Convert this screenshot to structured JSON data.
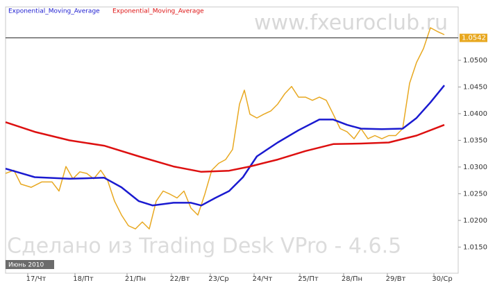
{
  "chart_data": {
    "type": "line",
    "watermark": "www.fxeuroclub.ru",
    "footer_watermark": "Сделано из Trading Desk VPro - 4.6.5",
    "period_label": "Июнь 2010",
    "last_price": 1.0542,
    "xlim": [
      0,
      652
    ],
    "xticks": [
      {
        "value": 32,
        "label": "17/Чт"
      },
      {
        "value": 100,
        "label": "18/Пт"
      },
      {
        "value": 175,
        "label": "21/Пн"
      },
      {
        "value": 239,
        "label": "22/Вт"
      },
      {
        "value": 295,
        "label": "23/Ср"
      },
      {
        "value": 358,
        "label": "24/Чт"
      },
      {
        "value": 424,
        "label": "25/Пт"
      },
      {
        "value": 487,
        "label": "28/Пн"
      },
      {
        "value": 550,
        "label": "29/Вт"
      },
      {
        "value": 617,
        "label": "30/Ср"
      }
    ],
    "ylim": [
      1.0101,
      1.06
    ],
    "yticks": [
      {
        "value": 1.015,
        "label": "1.0150"
      },
      {
        "value": 1.02,
        "label": "1.0200"
      },
      {
        "value": 1.025,
        "label": "1.0250"
      },
      {
        "value": 1.03,
        "label": "1.0300"
      },
      {
        "value": 1.035,
        "label": "1.0350"
      },
      {
        "value": 1.04,
        "label": "1.0400"
      },
      {
        "value": 1.045,
        "label": "1.0450"
      },
      {
        "value": 1.05,
        "label": "1.0500"
      }
    ],
    "price": {
      "color": "#e8a820",
      "x": [
        0,
        12,
        22,
        37,
        52,
        67,
        77,
        87,
        97,
        107,
        117,
        127,
        137,
        147,
        157,
        167,
        177,
        187,
        197,
        207,
        217,
        227,
        237,
        247,
        257,
        267,
        277,
        287,
        297,
        307,
        317,
        327,
        337,
        344,
        352,
        362,
        372,
        382,
        392,
        402,
        412,
        422,
        432,
        442,
        452,
        462,
        472,
        482,
        492,
        502,
        512,
        522,
        532,
        542,
        552,
        562,
        572,
        582,
        592,
        602,
        612,
        622,
        632
      ],
      "values": [
        1.0288,
        1.0294,
        1.0268,
        1.0262,
        1.0272,
        1.0272,
        1.0255,
        1.0301,
        1.0278,
        1.0291,
        1.0288,
        1.0278,
        1.0294,
        1.0275,
        1.0236,
        1.021,
        1.019,
        1.0184,
        1.0197,
        1.0184,
        1.0236,
        1.0255,
        1.0249,
        1.0242,
        1.0255,
        1.0223,
        1.021,
        1.0249,
        1.0294,
        1.0307,
        1.0314,
        1.0333,
        1.0418,
        1.0444,
        1.0399,
        1.0392,
        1.0399,
        1.0405,
        1.0418,
        1.0437,
        1.0451,
        1.0431,
        1.0431,
        1.0425,
        1.0431,
        1.0425,
        1.0399,
        1.0372,
        1.0366,
        1.0353,
        1.0372,
        1.0353,
        1.0359,
        1.0353,
        1.0359,
        1.0359,
        1.0372,
        1.0457,
        1.0496,
        1.0522,
        1.0561,
        1.0554,
        1.0548
      ]
    },
    "series": [
      {
        "name": "Exponential_Moving_Average",
        "color": "#1a1ad0",
        "x": [
          0,
          42,
          92,
          142,
          167,
          192,
          212,
          242,
          267,
          282,
          302,
          322,
          342,
          362,
          392,
          422,
          452,
          472,
          492,
          512,
          542,
          572,
          592,
          612,
          632
        ],
        "values": [
          1.0297,
          1.0281,
          1.0278,
          1.028,
          1.0262,
          1.0236,
          1.0228,
          1.0233,
          1.0233,
          1.0228,
          1.0242,
          1.0255,
          1.0281,
          1.032,
          1.0346,
          1.0369,
          1.0389,
          1.0389,
          1.0379,
          1.0372,
          1.0371,
          1.0372,
          1.0392,
          1.0421,
          1.0453
        ]
      },
      {
        "name": "Exponential_Moving_Average",
        "color": "#dd1010",
        "x": [
          0,
          42,
          92,
          142,
          192,
          242,
          282,
          322,
          352,
          392,
          432,
          472,
          512,
          552,
          592,
          632
        ],
        "values": [
          1.0384,
          1.0366,
          1.035,
          1.034,
          1.032,
          1.0301,
          1.0291,
          1.0293,
          1.0301,
          1.0314,
          1.033,
          1.0343,
          1.0344,
          1.0346,
          1.0359,
          1.0379
        ]
      }
    ]
  }
}
